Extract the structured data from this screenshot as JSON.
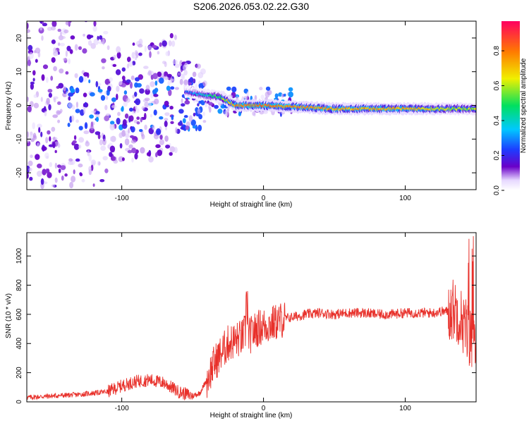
{
  "title": "S206.2026.053.02.22.G30",
  "colors": {
    "line": "#e8302a",
    "colormap": [
      "#ffffff",
      "#6a00c8",
      "#1e3cff",
      "#00c8ff",
      "#00e060",
      "#f0f000",
      "#ff7a00",
      "#ff0060"
    ]
  },
  "chart_data": [
    {
      "type": "heatmap",
      "title": "S206.2026.053.02.22.G30",
      "xlabel": "Height of straight line (km)",
      "ylabel": "Frequency (Hz)",
      "xlim": [
        -167,
        150
      ],
      "ylim": [
        -25,
        25
      ],
      "xticks": [
        -100,
        0,
        100
      ],
      "yticks": [
        -20,
        -10,
        0,
        10,
        20
      ],
      "colorbar": {
        "label": "Normalized spectral amplitude",
        "range": [
          0,
          0.97
        ],
        "ticks": [
          "0.0",
          "0.2",
          "0.4",
          "0.6",
          "0.8"
        ],
        "tick_values": [
          0,
          0.2,
          0.4,
          0.6,
          0.8
        ]
      },
      "ridge": {
        "description_points": [
          {
            "x": -55,
            "f": 4,
            "amp": 0.25
          },
          {
            "x": -40,
            "f": 3,
            "amp": 0.4
          },
          {
            "x": -30,
            "f": 2.5,
            "amp": 0.55
          },
          {
            "x": -20,
            "f": 0,
            "amp": 0.8
          },
          {
            "x": 0,
            "f": 0,
            "amp": 0.85
          },
          {
            "x": 50,
            "f": -1,
            "amp": 0.75
          },
          {
            "x": 100,
            "f": -1,
            "amp": 0.75
          },
          {
            "x": 140,
            "f": -1,
            "amp": 0.6
          }
        ]
      }
    },
    {
      "type": "line",
      "xlabel": "Height of straight line (km)",
      "ylabel": "SNR (10 * v/v)",
      "xlim": [
        -167,
        150
      ],
      "ylim": [
        0,
        1160
      ],
      "xticks": [
        -100,
        0,
        100
      ],
      "yticks": [
        0,
        200,
        400,
        600,
        800,
        1000
      ],
      "grid": false,
      "series": [
        {
          "values_x": [
            -167,
            -150,
            -130,
            -110,
            -100,
            -90,
            -80,
            -70,
            -60,
            -50,
            -45,
            -40,
            -35,
            -30,
            -25,
            -20,
            -15,
            -12,
            -10,
            -5,
            0,
            5,
            10,
            15,
            20,
            25,
            30,
            40,
            50,
            60,
            70,
            80,
            90,
            100,
            110,
            120,
            125,
            130,
            135,
            138,
            140,
            143,
            145,
            148,
            150
          ],
          "values_y": [
            30,
            40,
            50,
            70,
            110,
            140,
            150,
            130,
            70,
            40,
            60,
            150,
            260,
            330,
            400,
            420,
            440,
            500,
            450,
            500,
            520,
            530,
            550,
            570,
            580,
            590,
            600,
            610,
            600,
            610,
            610,
            600,
            600,
            610,
            610,
            610,
            620,
            620,
            640,
            600,
            560,
            500,
            450,
            420,
            400
          ]
        }
      ]
    }
  ]
}
